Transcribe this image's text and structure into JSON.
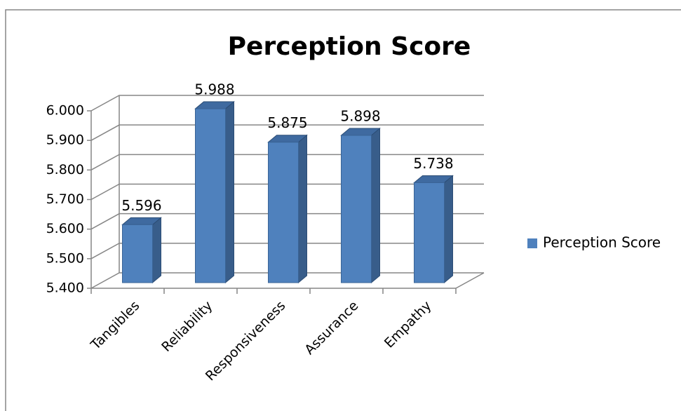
{
  "chart_data": {
    "type": "bar",
    "title": "Perception Score",
    "categories": [
      "Tangibles",
      "Reliability",
      "Responsiveness",
      "Assurance",
      "Empathy"
    ],
    "series": [
      {
        "name": "Perception Score",
        "color": "#4f81bd",
        "values": [
          5.596,
          5.988,
          5.875,
          5.898,
          5.738
        ]
      }
    ],
    "ylim": [
      5.4,
      6.0
    ],
    "yticks": [
      {
        "value": 5.4,
        "label": "5.400"
      },
      {
        "value": 5.5,
        "label": "5.500"
      },
      {
        "value": 5.6,
        "label": "5.600"
      },
      {
        "value": 5.7,
        "label": "5.700"
      },
      {
        "value": 5.8,
        "label": "5.800"
      },
      {
        "value": 5.9,
        "label": "5.900"
      },
      {
        "value": 6.0,
        "label": "6.000"
      }
    ],
    "grid": true,
    "legend": "right"
  }
}
